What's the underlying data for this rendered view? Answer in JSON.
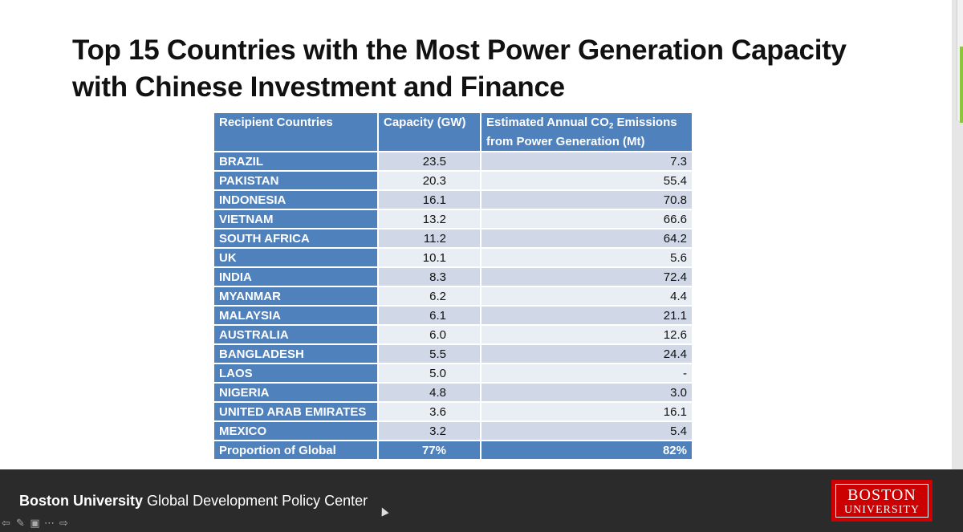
{
  "slide": {
    "title_line1": "Top 15 Countries with the Most Power Generation Capacity",
    "title_line2": "with Chinese Investment and Finance"
  },
  "table": {
    "header_country": "Recipient Countries",
    "header_capacity": "Capacity (GW)",
    "header_emissions_pre": "Estimated Annual CO",
    "header_emissions_sub": "2",
    "header_emissions_post": " Emissions",
    "header_emissions_line2": "from Power Generation (Mt)",
    "rows": [
      {
        "country": "BRAZIL",
        "capacity": "23.5",
        "emissions": "7.3"
      },
      {
        "country": "PAKISTAN",
        "capacity": "20.3",
        "emissions": "55.4"
      },
      {
        "country": "INDONESIA",
        "capacity": "16.1",
        "emissions": "70.8"
      },
      {
        "country": "VIETNAM",
        "capacity": "13.2",
        "emissions": "66.6"
      },
      {
        "country": "SOUTH AFRICA",
        "capacity": "11.2",
        "emissions": "64.2"
      },
      {
        "country": "UK",
        "capacity": "10.1",
        "emissions": "5.6"
      },
      {
        "country": "INDIA",
        "capacity": "8.3",
        "emissions": "72.4"
      },
      {
        "country": "MYANMAR",
        "capacity": "6.2",
        "emissions": "4.4"
      },
      {
        "country": "MALAYSIA",
        "capacity": "6.1",
        "emissions": "21.1"
      },
      {
        "country": "AUSTRALIA",
        "capacity": "6.0",
        "emissions": "12.6"
      },
      {
        "country": "BANGLADESH",
        "capacity": "5.5",
        "emissions": "24.4"
      },
      {
        "country": "LAOS",
        "capacity": "5.0",
        "emissions": "-"
      },
      {
        "country": "NIGERIA",
        "capacity": "4.8",
        "emissions": "3.0"
      },
      {
        "country": "UNITED ARAB EMIRATES",
        "capacity": "3.6",
        "emissions": "16.1"
      },
      {
        "country": "MEXICO",
        "capacity": "3.2",
        "emissions": "5.4"
      }
    ],
    "total": {
      "label": "Proportion of Global",
      "capacity": "77%",
      "emissions": "82%"
    }
  },
  "footer": {
    "org_bold": "Boston University",
    "org_rest": " Global Development Policy Center",
    "logo_line1": "BOSTON",
    "logo_line2": "UNIVERSITY"
  },
  "nav_icons": [
    "arrow-left-icon",
    "pen-icon",
    "slides-icon",
    "more-icon",
    "arrow-right-icon"
  ],
  "colors": {
    "header_blue": "#4f81bd",
    "row_band_a": "#d0d8e8",
    "row_band_b": "#e9edf4",
    "logo_red": "#cc0000"
  }
}
